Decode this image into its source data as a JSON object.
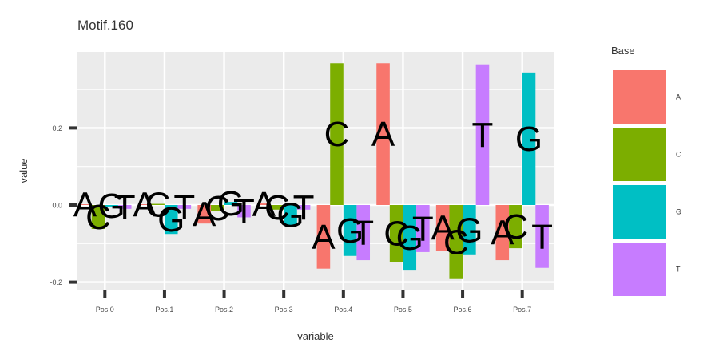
{
  "chart_data": {
    "type": "bar",
    "title": "Motif.160",
    "xlabel": "variable",
    "ylabel": "value",
    "categories": [
      "Pos.0",
      "Pos.1",
      "Pos.2",
      "Pos.3",
      "Pos.4",
      "Pos.5",
      "Pos.6",
      "Pos.7"
    ],
    "series": [
      {
        "name": "A",
        "color": "#F8766D",
        "values": [
          0.002,
          0.002,
          -0.048,
          0.004,
          -0.165,
          0.368,
          -0.118,
          -0.143
        ]
      },
      {
        "name": "C",
        "color": "#7CAE00",
        "values": [
          -0.062,
          0.003,
          -0.016,
          -0.012,
          0.368,
          -0.148,
          -0.192,
          -0.112
        ]
      },
      {
        "name": "G",
        "color": "#00BFC4",
        "values": [
          -0.004,
          -0.075,
          0.008,
          -0.052,
          -0.132,
          -0.17,
          -0.13,
          0.344
        ]
      },
      {
        "name": "T",
        "color": "#C77CFF",
        "values": [
          -0.01,
          -0.01,
          -0.032,
          -0.012,
          -0.143,
          -0.122,
          0.365,
          -0.163
        ]
      }
    ],
    "ylim": [
      -0.22,
      0.4
    ],
    "yticks": [
      -0.2,
      0.0,
      0.2
    ],
    "ytick_labels": [
      "-0.2",
      "0.0",
      "0.2"
    ],
    "legend": {
      "title": "Base",
      "position": "right",
      "entries": [
        "A",
        "C",
        "G",
        "T"
      ]
    },
    "grid": true,
    "letter_labels": true
  }
}
